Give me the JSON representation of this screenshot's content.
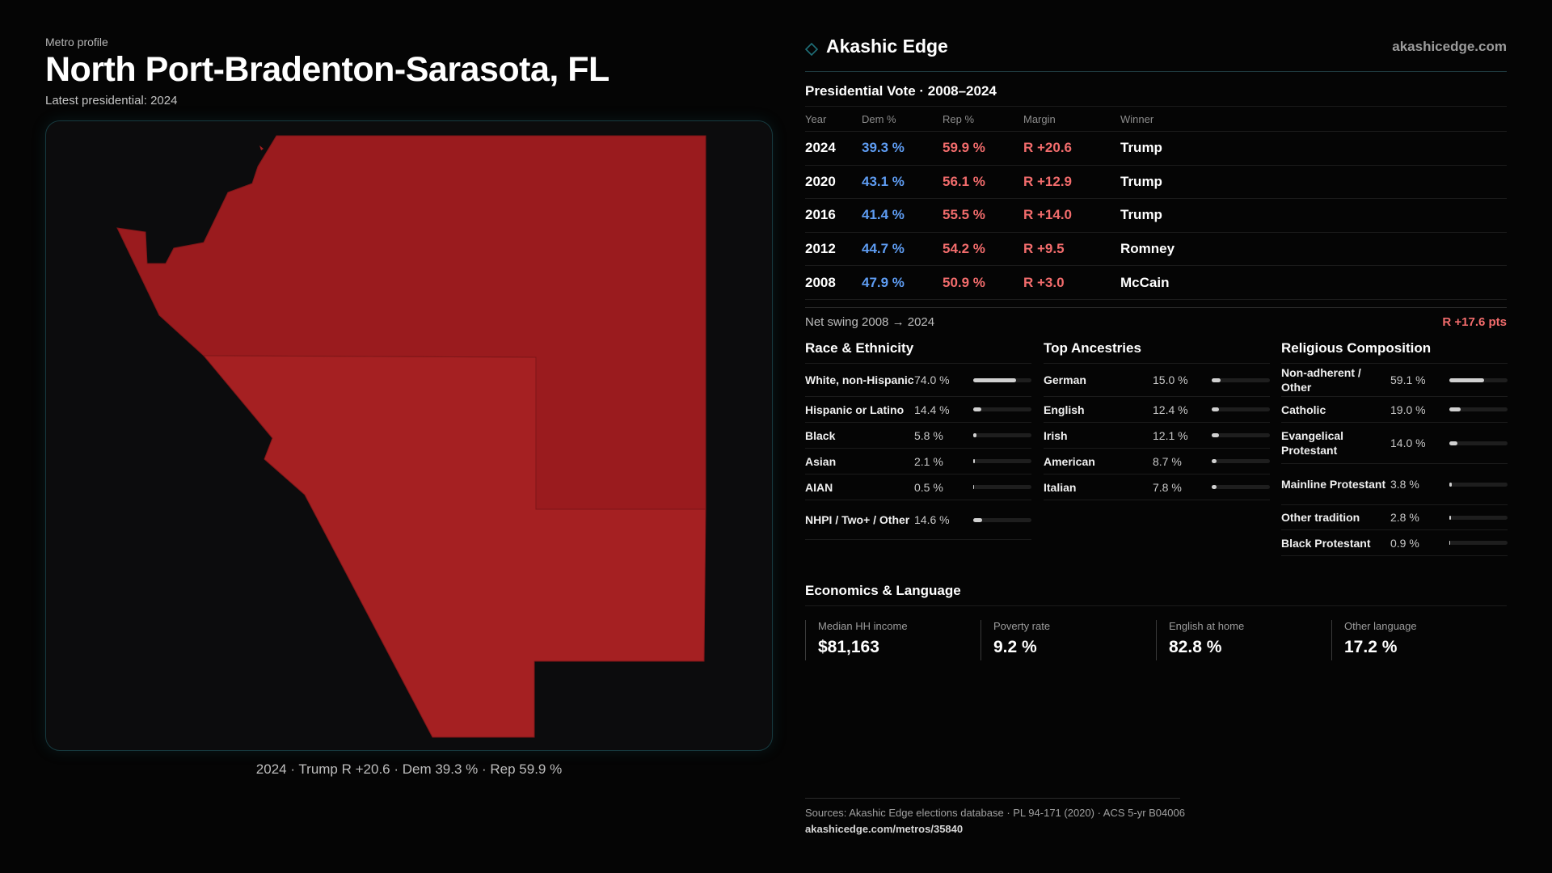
{
  "header": {
    "kicker": "Metro profile",
    "title": "North Port-Bradenton-Sarasota,  FL",
    "subtitle": "Latest presidential: 2024"
  },
  "map": {
    "caption": "2024 · Trump R +20.6 · Dem 39.3 % · Rep 59.9 %",
    "fill_color": "#a52022"
  },
  "brand": {
    "name": "Akashic Edge",
    "url": "akashicedge.com",
    "accent": "#1f6f78"
  },
  "vote": {
    "title": "Presidential Vote · 2008–2024",
    "columns": [
      "Year",
      "Dem %",
      "Rep %",
      "Margin",
      "Winner"
    ],
    "rows": [
      {
        "year": "2024",
        "dem": "39.3 %",
        "rep": "59.9 %",
        "margin": "R +20.6",
        "winner": "Trump"
      },
      {
        "year": "2020",
        "dem": "43.1 %",
        "rep": "56.1 %",
        "margin": "R +12.9",
        "winner": "Trump"
      },
      {
        "year": "2016",
        "dem": "41.4 %",
        "rep": "55.5 %",
        "margin": "R +14.0",
        "winner": "Trump"
      },
      {
        "year": "2012",
        "dem": "44.7 %",
        "rep": "54.2 %",
        "margin": "R +9.5",
        "winner": "Romney"
      },
      {
        "year": "2008",
        "dem": "47.9 %",
        "rep": "50.9 %",
        "margin": "R +3.0",
        "winner": "McCain"
      }
    ],
    "swing_label": "Net swing 2008 → 2024",
    "swing_value": "R +17.6 pts",
    "colors": {
      "dem": "#5e9cf2",
      "rep": "#f26c6c"
    }
  },
  "race": {
    "title": "Race & Ethnicity",
    "items": [
      {
        "name": "White, non-Hispanic",
        "pct": "74.0 %",
        "value": 74.0
      },
      {
        "name": "Hispanic or Latino",
        "pct": "14.4 %",
        "value": 14.4
      },
      {
        "name": "Black",
        "pct": "5.8 %",
        "value": 5.8
      },
      {
        "name": "Asian",
        "pct": "2.1 %",
        "value": 2.1
      },
      {
        "name": "AIAN",
        "pct": "0.5 %",
        "value": 0.5
      },
      {
        "name": "NHPI / Two+ / Other",
        "pct": "14.6 %",
        "value": 14.6
      }
    ]
  },
  "ancestry": {
    "title": "Top Ancestries",
    "items": [
      {
        "name": "German",
        "pct": "15.0 %",
        "value": 15.0
      },
      {
        "name": "English",
        "pct": "12.4 %",
        "value": 12.4
      },
      {
        "name": "Irish",
        "pct": "12.1 %",
        "value": 12.1
      },
      {
        "name": "American",
        "pct": "8.7 %",
        "value": 8.7
      },
      {
        "name": "Italian",
        "pct": "7.8 %",
        "value": 7.8
      }
    ]
  },
  "religion": {
    "title": "Religious Composition",
    "items": [
      {
        "name": "Non-adherent / Other",
        "pct": "59.1 %",
        "value": 59.1
      },
      {
        "name": "Catholic",
        "pct": "19.0 %",
        "value": 19.0
      },
      {
        "name": "Evangelical Protestant",
        "pct": "14.0 %",
        "value": 14.0
      },
      {
        "name": "Mainline Protestant",
        "pct": "3.8 %",
        "value": 3.8
      },
      {
        "name": "Other tradition",
        "pct": "2.8 %",
        "value": 2.8
      },
      {
        "name": "Black Protestant",
        "pct": "0.9 %",
        "value": 0.9
      }
    ]
  },
  "economics": {
    "title": "Economics & Language",
    "kpis": [
      {
        "label": "Median HH income",
        "value": "$81,163"
      },
      {
        "label": "Poverty rate",
        "value": "9.2 %"
      },
      {
        "label": "English at home",
        "value": "82.8 %"
      },
      {
        "label": "Other language",
        "value": "17.2 %"
      }
    ]
  },
  "sources": {
    "line1": "Sources: Akashic Edge elections database · PL 94-171 (2020) · ACS 5-yr B04006",
    "line2": "akashicedge.com/metros/35840"
  }
}
